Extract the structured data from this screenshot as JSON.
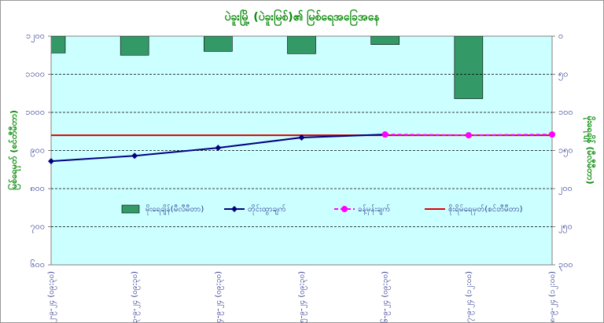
{
  "chart_data": {
    "type": "combo",
    "title": "ပဲခူးမြို့ (ပဲခူးမြစ်)၏ မြစ်ရေအခြေအနေ",
    "ylabel": "မြစ်ရေမှတ် (စင်တီမီတာ)",
    "y2label": "မိုးရေချိန် (မီလီမီတာ)",
    "categories": [
      "၁၂-၉-၂၄ (၀၉:၃၀)",
      "၁၃-၉-၂၄ (၀၉:၃၀)",
      "၁၄-၉-၂၄ (၀၉:၃၀)",
      "၁၅-၉-၂၄ (၀၉:၃၀)",
      "၁၆-၉-၂၄ (၀၉:၃၀)",
      "၁၇-၉-၂၄ (၁၂:၀၀)",
      "၁၈-၉-၂၄ (၁၂:၀၀)"
    ],
    "ylim": [
      600,
      1200
    ],
    "yticks": [
      {
        "value": 1200,
        "label": "၁၂၀၀"
      },
      {
        "value": 1100,
        "label": "၁၁၀၀"
      },
      {
        "value": 1000,
        "label": "၁၀၀၀"
      },
      {
        "value": 900,
        "label": "၉၀၀"
      },
      {
        "value": 800,
        "label": "၈၀၀"
      },
      {
        "value": 700,
        "label": "၇၀၀"
      },
      {
        "value": 600,
        "label": "၆၀၀"
      }
    ],
    "y2lim": [
      0,
      300
    ],
    "y2_reversed": true,
    "y2ticks": [
      {
        "value": 0,
        "label": "၀"
      },
      {
        "value": 50,
        "label": "၅၀"
      },
      {
        "value": 100,
        "label": "၁၀၀"
      },
      {
        "value": 150,
        "label": "၁၅၀"
      },
      {
        "value": 200,
        "label": "၂၀၀"
      },
      {
        "value": 250,
        "label": "၂၅၀"
      },
      {
        "value": 300,
        "label": "၃၀၀"
      }
    ],
    "grid": true,
    "series": [
      {
        "name": "မိုးရေချိန်(မီလီမီတာ)",
        "kind": "bar",
        "axis": "y2",
        "color": "#339966",
        "values": [
          22,
          25,
          20,
          23,
          11,
          82,
          null
        ]
      },
      {
        "name": "တိုင်းထွာချက်",
        "kind": "line",
        "color": "#000080",
        "values": [
          872,
          886,
          907,
          934,
          942,
          null,
          null
        ]
      },
      {
        "name": "ခန့်မှန်းချက်",
        "kind": "dashed",
        "color": "#ff00ff",
        "values": [
          null,
          null,
          null,
          null,
          942,
          940,
          942
        ]
      },
      {
        "name": "စိုးရိမ်ရေမှတ်(စင်တီမီတာ)",
        "kind": "hline",
        "color": "#dd0000",
        "value": 940
      }
    ]
  }
}
